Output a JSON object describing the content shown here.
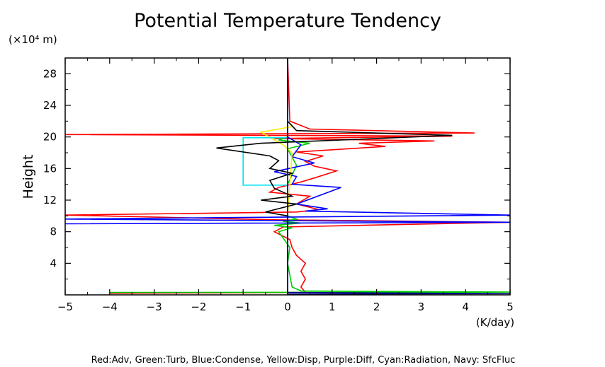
{
  "chart_data": {
    "type": "line",
    "title": "Potential Temperature Tendency",
    "ylabel": "Height",
    "yunit": "(×10⁴ m)",
    "xunit": "(K/day)",
    "xlim": [
      -5,
      5
    ],
    "ylim": [
      0,
      30
    ],
    "xticks": [
      -5,
      -4,
      -3,
      -2,
      -1,
      0,
      1,
      2,
      3,
      4,
      5
    ],
    "yticks": [
      4,
      8,
      12,
      16,
      20,
      24,
      28
    ],
    "legend_text": "Red:Adv, Green:Turb, Blue:Condense, Yellow:Disp, Purple:Diff, Cyan:Radiation, Navy: SfcFluc",
    "grid": false,
    "series": [
      {
        "name": "Red:Adv",
        "color": "#ff0000",
        "points": [
          [
            -4.0,
            0.2
          ],
          [
            0.4,
            0.3
          ],
          [
            0.3,
            1
          ],
          [
            0.4,
            2
          ],
          [
            0.3,
            3
          ],
          [
            0.4,
            4
          ],
          [
            0.2,
            5
          ],
          [
            0.1,
            6
          ],
          [
            0.05,
            7
          ],
          [
            -0.3,
            8
          ],
          [
            -0.1,
            8.6
          ],
          [
            5.0,
            9.2
          ],
          [
            -0.2,
            9.5
          ],
          [
            -5.0,
            10.1
          ],
          [
            0.2,
            10.5
          ],
          [
            0.7,
            10.8
          ],
          [
            0.2,
            11.5
          ],
          [
            0.5,
            12.5
          ],
          [
            -0.4,
            13.0
          ],
          [
            -0.2,
            13.6
          ],
          [
            0.3,
            14.3
          ],
          [
            0.6,
            14.8
          ],
          [
            1.1,
            15.7
          ],
          [
            0.6,
            16.3
          ],
          [
            0.4,
            16.9
          ],
          [
            0.8,
            17.6
          ],
          [
            0.2,
            18.1
          ],
          [
            2.2,
            18.8
          ],
          [
            1.6,
            19.2
          ],
          [
            3.3,
            19.5
          ],
          [
            -0.3,
            19.8
          ],
          [
            3.7,
            20.1
          ],
          [
            -5.0,
            20.3
          ],
          [
            4.2,
            20.5
          ],
          [
            0.5,
            21.0
          ],
          [
            0.05,
            22
          ],
          [
            0.0,
            30
          ]
        ]
      },
      {
        "name": "Green:Turb",
        "color": "#00cc00",
        "points": [
          [
            -4.0,
            0.3
          ],
          [
            5.0,
            0.35
          ],
          [
            0.3,
            0.5
          ],
          [
            0.1,
            1
          ],
          [
            0.0,
            4
          ],
          [
            0.05,
            6
          ],
          [
            -0.2,
            8.0
          ],
          [
            0.1,
            8.5
          ],
          [
            -0.3,
            8.8
          ],
          [
            0.3,
            9.1
          ],
          [
            -0.1,
            9.3
          ],
          [
            0.2,
            9.6
          ],
          [
            0.0,
            10
          ],
          [
            0.0,
            14
          ],
          [
            0.2,
            16.4
          ],
          [
            0.0,
            18.5
          ],
          [
            0.5,
            19.2
          ],
          [
            -0.2,
            19.6
          ],
          [
            0.0,
            20
          ],
          [
            0.0,
            30
          ]
        ]
      },
      {
        "name": "Blue:Condense",
        "color": "#0000ff",
        "points": [
          [
            -5.0,
            9.0
          ],
          [
            5.0,
            9.2
          ],
          [
            -5.0,
            9.6
          ],
          [
            5.0,
            10.1
          ],
          [
            0.4,
            10.6
          ],
          [
            0.9,
            10.9
          ],
          [
            0.2,
            11.5
          ],
          [
            1.2,
            13.6
          ],
          [
            0.1,
            14.0
          ],
          [
            0.2,
            15.0
          ],
          [
            -0.3,
            15.6
          ],
          [
            0.6,
            16.7
          ],
          [
            0.1,
            17.5
          ],
          [
            0.3,
            19.0
          ],
          [
            0.0,
            20
          ],
          [
            0.0,
            30
          ]
        ]
      },
      {
        "name": "Yellow:Disp",
        "color": "#ffee00",
        "points": [
          [
            0.0,
            10
          ],
          [
            0.1,
            18
          ],
          [
            -0.1,
            19
          ],
          [
            -0.6,
            20.6
          ],
          [
            0.1,
            21.3
          ],
          [
            0.0,
            22
          ],
          [
            0.0,
            30
          ]
        ]
      },
      {
        "name": "Cyan:Radiation",
        "color": "#00e5ee",
        "points": [
          [
            0.0,
            13.9
          ],
          [
            -1.0,
            13.9
          ],
          [
            -1.0,
            19.9
          ],
          [
            0.0,
            19.9
          ]
        ]
      },
      {
        "name": "Black",
        "color": "#000000",
        "points": [
          [
            0.0,
            0
          ],
          [
            0.0,
            10
          ],
          [
            -0.5,
            10.5
          ],
          [
            0.2,
            11.5
          ],
          [
            -0.6,
            12.0
          ],
          [
            0.1,
            12.5
          ],
          [
            -0.3,
            13.5
          ],
          [
            -0.4,
            14.5
          ],
          [
            0.1,
            15.4
          ],
          [
            -0.4,
            16.0
          ],
          [
            -0.2,
            17.0
          ],
          [
            -0.4,
            17.6
          ],
          [
            -1.6,
            18.6
          ],
          [
            -0.6,
            19.2
          ],
          [
            3.7,
            20.2
          ],
          [
            0.2,
            20.8
          ],
          [
            0.0,
            22
          ],
          [
            0.0,
            30
          ]
        ]
      },
      {
        "name": "Navy: SfcFluc",
        "color": "#000080",
        "points": [
          [
            0.0,
            0.1
          ],
          [
            5.0,
            0.15
          ],
          [
            0.0,
            0.3
          ],
          [
            0.0,
            30
          ]
        ]
      }
    ]
  }
}
